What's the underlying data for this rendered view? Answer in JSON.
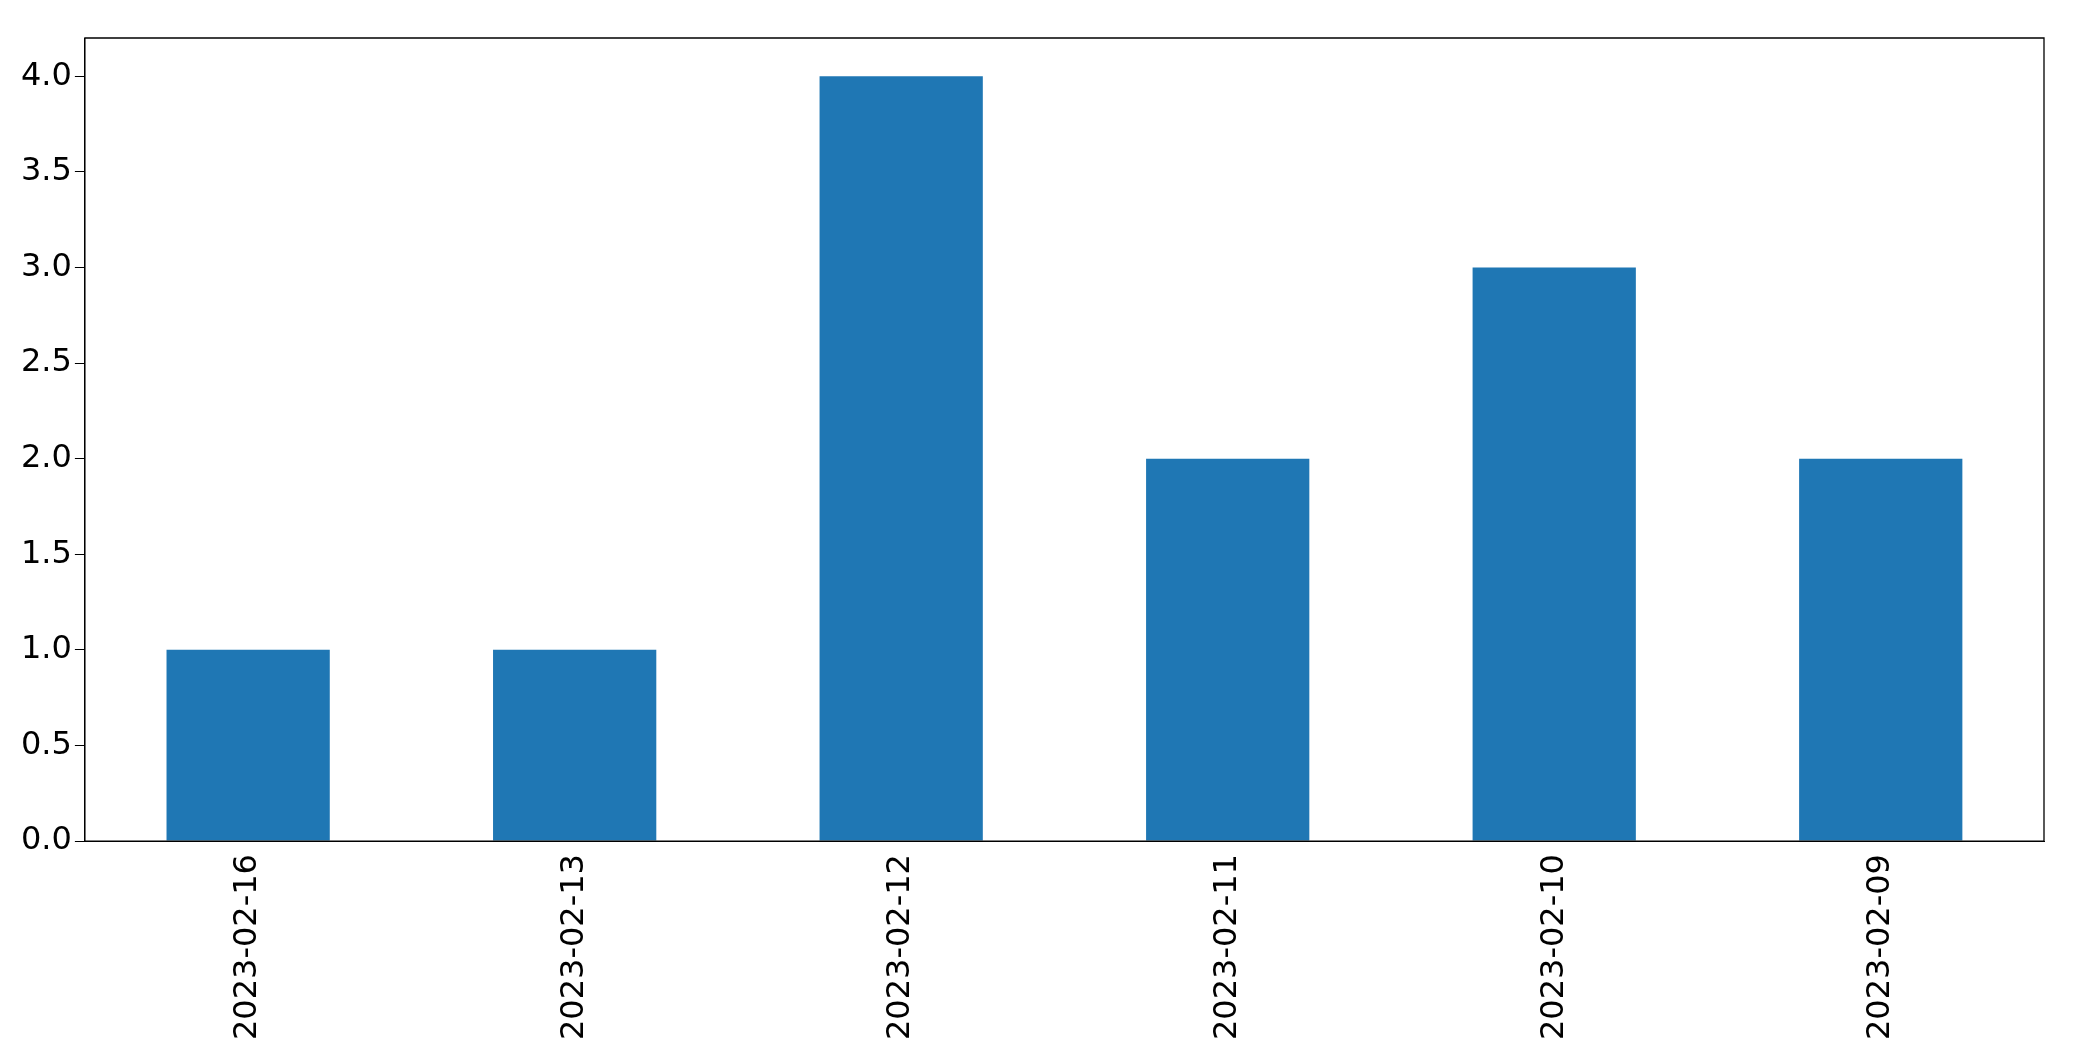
{
  "chart_data": {
    "type": "bar",
    "categories": [
      "2023-02-16",
      "2023-02-13",
      "2023-02-12",
      "2023-02-11",
      "2023-02-10",
      "2023-02-09"
    ],
    "values": [
      1,
      1,
      4,
      2,
      3,
      2
    ],
    "color": "#1f77b4",
    "ylim": [
      0,
      4.2
    ],
    "yticks": [
      {
        "value": 0,
        "label": "0.0"
      },
      {
        "value": 0.5,
        "label": "0.5"
      },
      {
        "value": 1,
        "label": "1.0"
      },
      {
        "value": 1.5,
        "label": "1.5"
      },
      {
        "value": 2,
        "label": "2.0"
      },
      {
        "value": 2.5,
        "label": "2.5"
      },
      {
        "value": 3,
        "label": "3.0"
      },
      {
        "value": 3.5,
        "label": "3.5"
      },
      {
        "value": 4,
        "label": "4.0"
      }
    ],
    "grid": false,
    "legend": false
  }
}
